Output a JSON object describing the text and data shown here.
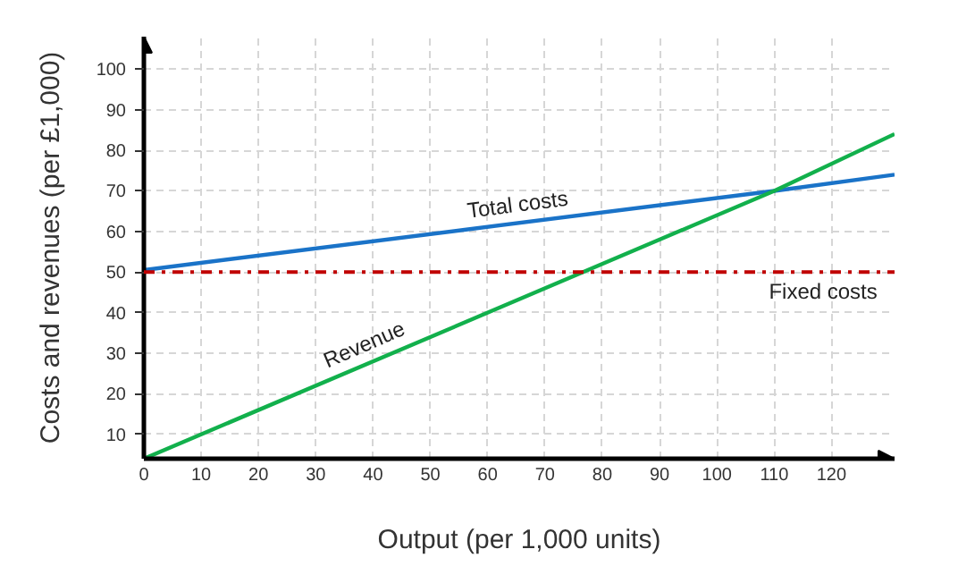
{
  "chart_data": {
    "type": "line",
    "xlabel": "Output (per 1,000 units)",
    "ylabel": "Costs and revenues (per £1,000)",
    "xlim": [
      0,
      131
    ],
    "ylim": [
      4,
      108
    ],
    "xticks": [
      0,
      10,
      20,
      30,
      40,
      50,
      60,
      70,
      80,
      90,
      100,
      110,
      120
    ],
    "yticks": [
      10,
      20,
      30,
      40,
      50,
      60,
      70,
      80,
      90,
      100
    ],
    "grid": true,
    "legend": false,
    "marker": "none",
    "line_style": "solid",
    "series": [
      {
        "name": "Total costs",
        "color": "#1a73c8",
        "x": [
          0,
          110,
          131
        ],
        "values": [
          50.5,
          70,
          74
        ]
      },
      {
        "name": "Revenue",
        "color": "#12b04c",
        "x": [
          0,
          110,
          131
        ],
        "values": [
          4,
          70,
          84
        ]
      }
    ],
    "ref_lines": [
      {
        "axis": "y",
        "value": 50,
        "label": "Fixed costs",
        "color": "#c00000",
        "line_style": "dashdot"
      }
    ]
  }
}
